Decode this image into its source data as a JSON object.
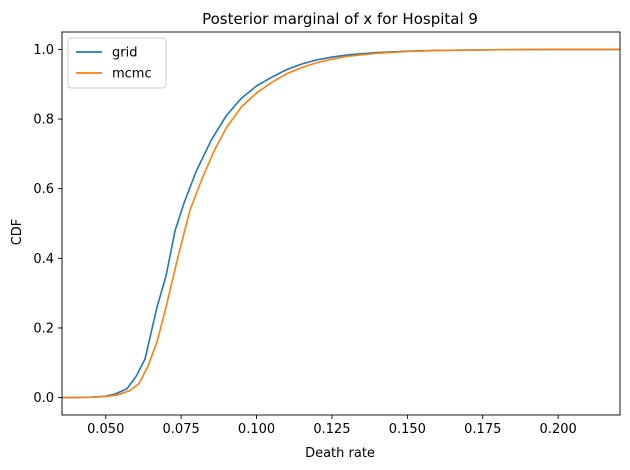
{
  "chart_data": {
    "type": "line",
    "title": "Posterior marginal of x for Hospital 9",
    "xlabel": "Death rate",
    "ylabel": "CDF",
    "xlim": [
      0.0355,
      0.2205
    ],
    "ylim": [
      -0.05,
      1.05
    ],
    "xticks": [
      0.05,
      0.075,
      0.1,
      0.125,
      0.15,
      0.175,
      0.2
    ],
    "xtick_labels": [
      "0.050",
      "0.075",
      "0.100",
      "0.125",
      "0.150",
      "0.175",
      "0.200"
    ],
    "yticks": [
      0.0,
      0.2,
      0.4,
      0.6,
      0.8,
      1.0
    ],
    "ytick_labels": [
      "0.0",
      "0.2",
      "0.4",
      "0.6",
      "0.8",
      "1.0"
    ],
    "grid": false,
    "legend_position": "top-left",
    "series": [
      {
        "name": "grid",
        "color": "#1f77b4",
        "points": [
          [
            0.0355,
            0.0
          ],
          [
            0.04,
            0.0
          ],
          [
            0.045,
            0.001
          ],
          [
            0.05,
            0.004
          ],
          [
            0.053,
            0.01
          ],
          [
            0.057,
            0.025
          ],
          [
            0.06,
            0.06
          ],
          [
            0.063,
            0.11
          ],
          [
            0.067,
            0.26
          ],
          [
            0.07,
            0.35
          ],
          [
            0.073,
            0.48
          ],
          [
            0.076,
            0.56
          ],
          [
            0.08,
            0.65
          ],
          [
            0.085,
            0.74
          ],
          [
            0.09,
            0.81
          ],
          [
            0.095,
            0.86
          ],
          [
            0.1,
            0.895
          ],
          [
            0.105,
            0.92
          ],
          [
            0.11,
            0.942
          ],
          [
            0.115,
            0.958
          ],
          [
            0.12,
            0.97
          ],
          [
            0.125,
            0.978
          ],
          [
            0.13,
            0.984
          ],
          [
            0.14,
            0.991
          ],
          [
            0.15,
            0.995
          ],
          [
            0.16,
            0.997
          ],
          [
            0.18,
            0.999
          ],
          [
            0.2,
            1.0
          ],
          [
            0.2205,
            1.0
          ]
        ]
      },
      {
        "name": "mcmc",
        "color": "#ff7f0e",
        "points": [
          [
            0.0355,
            0.0
          ],
          [
            0.04,
            0.0
          ],
          [
            0.045,
            0.001
          ],
          [
            0.05,
            0.003
          ],
          [
            0.054,
            0.008
          ],
          [
            0.058,
            0.02
          ],
          [
            0.061,
            0.04
          ],
          [
            0.064,
            0.09
          ],
          [
            0.067,
            0.16
          ],
          [
            0.07,
            0.26
          ],
          [
            0.073,
            0.37
          ],
          [
            0.075,
            0.44
          ],
          [
            0.078,
            0.54
          ],
          [
            0.082,
            0.63
          ],
          [
            0.086,
            0.71
          ],
          [
            0.09,
            0.775
          ],
          [
            0.095,
            0.835
          ],
          [
            0.1,
            0.875
          ],
          [
            0.105,
            0.905
          ],
          [
            0.11,
            0.93
          ],
          [
            0.115,
            0.948
          ],
          [
            0.12,
            0.962
          ],
          [
            0.125,
            0.972
          ],
          [
            0.13,
            0.98
          ],
          [
            0.14,
            0.989
          ],
          [
            0.15,
            0.994
          ],
          [
            0.16,
            0.997
          ],
          [
            0.18,
            0.999
          ],
          [
            0.2,
            1.0
          ],
          [
            0.2205,
            1.0
          ]
        ]
      }
    ]
  }
}
